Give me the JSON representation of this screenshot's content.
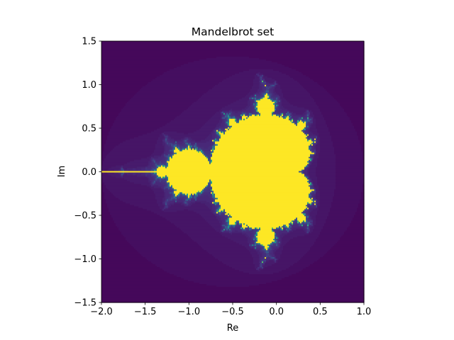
{
  "chart_data": {
    "type": "image",
    "title": "Mandelbrot set",
    "x_label": "Re",
    "y_label": "Im",
    "xlim": [
      -2.0,
      1.0
    ],
    "ylim": [
      -1.5,
      1.5
    ],
    "xticks": [
      {
        "value": -2.0,
        "label": "−2.0"
      },
      {
        "value": -1.5,
        "label": "−1.5"
      },
      {
        "value": -1.0,
        "label": "−1.0"
      },
      {
        "value": -0.5,
        "label": "−0.5"
      },
      {
        "value": 0.0,
        "label": "0.0"
      },
      0.5,
      {
        "value": 1.0,
        "label": "1.0"
      }
    ],
    "yticks": [
      {
        "value": -1.5,
        "label": "−1.5"
      },
      {
        "value": -1.0,
        "label": "−1.0"
      },
      {
        "value": -0.5,
        "label": "−0.5"
      },
      {
        "value": 0.0,
        "label": "0.0"
      },
      0.5,
      {
        "value": 1.0,
        "label": "1.0"
      },
      {
        "value": 1.5,
        "label": "1.5"
      }
    ],
    "grid": false
  }
}
